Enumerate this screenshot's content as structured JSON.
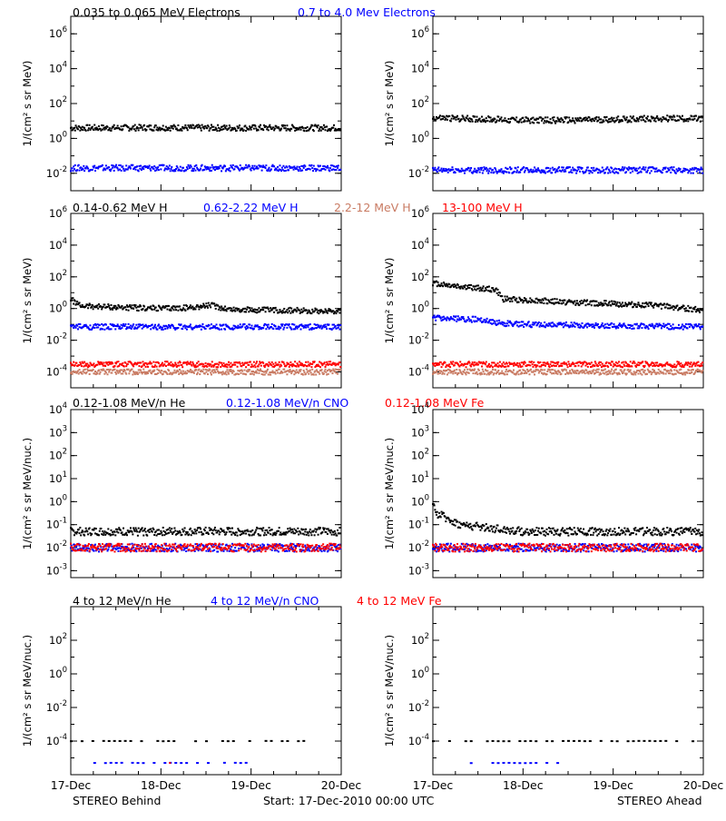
{
  "legends": [
    [
      {
        "text": "0.035 to 0.065 MeV Electrons",
        "color": "#000000"
      },
      {
        "text": "0.7 to 4.0 Mev Electrons",
        "color": "#0000ff"
      }
    ],
    [
      {
        "text": "0.14-0.62 MeV H",
        "color": "#000000"
      },
      {
        "text": "0.62-2.22 MeV H",
        "color": "#0000ff"
      },
      {
        "text": "2.2-12 MeV H",
        "color": "#c97b63"
      },
      {
        "text": "13-100 MeV H",
        "color": "#ff0000"
      }
    ],
    [
      {
        "text": "0.12-1.08 MeV/n He",
        "color": "#000000"
      },
      {
        "text": "0.12-1.08 MeV/n CNO",
        "color": "#0000ff"
      },
      {
        "text": "0.12-1.08 MeV Fe",
        "color": "#ff0000"
      }
    ],
    [
      {
        "text": "4 to 12 MeV/n He",
        "color": "#000000"
      },
      {
        "text": "4 to 12 MeV/n CNO",
        "color": "#0000ff"
      },
      {
        "text": "4 to 12 MeV Fe",
        "color": "#ff0000"
      }
    ]
  ],
  "footer": {
    "left": "STEREO Behind",
    "center": "Start: 17-Dec-2010 00:00 UTC",
    "right": "STEREO Ahead"
  },
  "chart_data": [
    {
      "type": "scatter",
      "name": "electrons-behind",
      "ylabel": "1/(cm² s sr MeV)",
      "yscale": "log",
      "ylim": [
        0.001,
        10000000
      ],
      "yticks": [
        "10^6",
        "10^4",
        "10^2",
        "10^0",
        "10^-2"
      ],
      "xlim": [
        "17-Dec",
        "20-Dec"
      ],
      "xticks": [],
      "series": [
        {
          "name": "0.035 to 0.065 MeV Electrons",
          "color": "#000000",
          "points": [
            [
              0,
              4
            ],
            [
              0.5,
              4
            ],
            [
              1,
              4.2
            ],
            [
              1.5,
              4
            ],
            [
              2,
              4
            ],
            [
              2.5,
              4
            ],
            [
              3,
              4
            ]
          ]
        },
        {
          "name": "0.7 to 4.0 Mev Electrons",
          "color": "#0000ff",
          "points": [
            [
              0,
              0.02
            ],
            [
              1,
              0.02
            ],
            [
              2,
              0.02
            ],
            [
              3,
              0.02
            ]
          ]
        }
      ]
    },
    {
      "type": "scatter",
      "name": "electrons-ahead",
      "ylabel": "1/(cm² s sr MeV)",
      "yscale": "log",
      "ylim": [
        0.001,
        10000000
      ],
      "yticks": [
        "10^6",
        "10^4",
        "10^2",
        "10^0",
        "10^-2"
      ],
      "xlim": [
        "17-Dec",
        "20-Dec"
      ],
      "xticks": [],
      "series": [
        {
          "name": "0.035 to 0.065 MeV Electrons",
          "color": "#000000",
          "points": [
            [
              0,
              15
            ],
            [
              0.5,
              13
            ],
            [
              1,
              11
            ],
            [
              1.5,
              11
            ],
            [
              2,
              12
            ],
            [
              2.5,
              14
            ],
            [
              3,
              13
            ]
          ]
        },
        {
          "name": "0.7 to 4.0 Mev Electrons",
          "color": "#0000ff",
          "points": [
            [
              0,
              0.015
            ],
            [
              1,
              0.015
            ],
            [
              2,
              0.015
            ],
            [
              3,
              0.015
            ]
          ]
        }
      ]
    },
    {
      "type": "scatter",
      "name": "protons-behind",
      "ylabel": "1/(cm² s sr MeV)",
      "yscale": "log",
      "ylim": [
        1e-05,
        1000000
      ],
      "yticks": [
        "10^6",
        "10^4",
        "10^2",
        "10^0",
        "10^-2",
        "10^-4"
      ],
      "xlim": [
        "17-Dec",
        "20-Dec"
      ],
      "xticks": [],
      "series": [
        {
          "name": "0.14-0.62 MeV H",
          "color": "#000000",
          "points": [
            [
              0,
              4
            ],
            [
              0.1,
              1.5
            ],
            [
              0.5,
              1.2
            ],
            [
              1,
              1
            ],
            [
              1.3,
              1.1
            ],
            [
              1.55,
              1.6
            ],
            [
              1.75,
              0.9
            ],
            [
              2,
              0.8
            ],
            [
              2.5,
              0.75
            ],
            [
              3,
              0.7
            ]
          ]
        },
        {
          "name": "0.62-2.22 MeV H",
          "color": "#0000ff",
          "points": [
            [
              0,
              0.07
            ],
            [
              1,
              0.07
            ],
            [
              2,
              0.07
            ],
            [
              3,
              0.07
            ]
          ]
        },
        {
          "name": "2.2-12 MeV H",
          "color": "#c97b63",
          "points": [
            [
              0,
              0.0001
            ],
            [
              1,
              0.0001
            ],
            [
              2,
              0.0001
            ],
            [
              3,
              0.0001
            ]
          ]
        },
        {
          "name": "13-100 MeV H",
          "color": "#ff0000",
          "points": [
            [
              0,
              0.0003
            ],
            [
              1,
              0.0003
            ],
            [
              2,
              0.0003
            ],
            [
              3,
              0.0003
            ]
          ]
        }
      ]
    },
    {
      "type": "scatter",
      "name": "protons-ahead",
      "ylabel": "1/(cm² s sr MeV)",
      "yscale": "log",
      "ylim": [
        1e-05,
        1000000
      ],
      "yticks": [
        "10^6",
        "10^4",
        "10^2",
        "10^0",
        "10^-2",
        "10^-4"
      ],
      "xlim": [
        "17-Dec",
        "20-Dec"
      ],
      "xticks": [],
      "series": [
        {
          "name": "0.14-0.62 MeV H",
          "color": "#000000",
          "points": [
            [
              0,
              40
            ],
            [
              0.3,
              25
            ],
            [
              0.7,
              15
            ],
            [
              0.78,
              4
            ],
            [
              1,
              3.5
            ],
            [
              1.5,
              2.5
            ],
            [
              2,
              2
            ],
            [
              2.5,
              1.5
            ],
            [
              3,
              0.8
            ]
          ]
        },
        {
          "name": "0.62-2.22 MeV H",
          "color": "#0000ff",
          "points": [
            [
              0,
              0.25
            ],
            [
              0.5,
              0.2
            ],
            [
              0.75,
              0.12
            ],
            [
              1,
              0.1
            ],
            [
              2,
              0.08
            ],
            [
              3,
              0.07
            ]
          ]
        },
        {
          "name": "2.2-12 MeV H",
          "color": "#c97b63",
          "points": [
            [
              0,
              0.0001
            ],
            [
              1,
              0.0001
            ],
            [
              2,
              0.0001
            ],
            [
              3,
              0.0001
            ]
          ]
        },
        {
          "name": "13-100 MeV H",
          "color": "#ff0000",
          "points": [
            [
              0,
              0.0003
            ],
            [
              1,
              0.0003
            ],
            [
              2,
              0.0003
            ],
            [
              3,
              0.0003
            ]
          ]
        }
      ]
    },
    {
      "type": "scatter",
      "name": "heavy-low-behind",
      "ylabel": "1/(cm² s sr MeV/nuc.)",
      "yscale": "log",
      "ylim": [
        0.0005,
        10000
      ],
      "yticks": [
        "10^4",
        "10^3",
        "10^2",
        "10^1",
        "10^0",
        "10^-1",
        "10^-2",
        "10^-3"
      ],
      "xlim": [
        "17-Dec",
        "20-Dec"
      ],
      "xticks": [],
      "series": [
        {
          "name": "0.12-1.08 MeV/n He",
          "color": "#000000",
          "points": [
            [
              0,
              0.05
            ],
            [
              1,
              0.05
            ],
            [
              2,
              0.05
            ],
            [
              3,
              0.05
            ]
          ]
        },
        {
          "name": "0.12-1.08 MeV/n CNO",
          "color": "#0000ff",
          "points": [
            [
              0,
              0.01
            ],
            [
              1,
              0.01
            ],
            [
              2,
              0.01
            ],
            [
              3,
              0.01
            ]
          ]
        },
        {
          "name": "0.12-1.08 MeV Fe",
          "color": "#ff0000",
          "points": [
            [
              0,
              0.01
            ],
            [
              1,
              0.01
            ],
            [
              2,
              0.01
            ],
            [
              3,
              0.01
            ]
          ]
        }
      ]
    },
    {
      "type": "scatter",
      "name": "heavy-low-ahead",
      "ylabel": "1/(cm² s sr MeV/nuc.)",
      "yscale": "log",
      "ylim": [
        0.0005,
        10000
      ],
      "yticks": [
        "10^4",
        "10^3",
        "10^2",
        "10^1",
        "10^0",
        "10^-1",
        "10^-2",
        "10^-3"
      ],
      "xlim": [
        "17-Dec",
        "20-Dec"
      ],
      "xticks": [],
      "series": [
        {
          "name": "0.12-1.08 MeV/n He",
          "color": "#000000",
          "points": [
            [
              0,
              0.6
            ],
            [
              0.05,
              0.3
            ],
            [
              0.15,
              0.2
            ],
            [
              0.3,
              0.1
            ],
            [
              1,
              0.05
            ],
            [
              2,
              0.05
            ],
            [
              3,
              0.05
            ]
          ]
        },
        {
          "name": "0.12-1.08 MeV/n CNO",
          "color": "#0000ff",
          "points": [
            [
              0,
              0.01
            ],
            [
              1,
              0.01
            ],
            [
              2,
              0.01
            ],
            [
              3,
              0.01
            ]
          ]
        },
        {
          "name": "0.12-1.08 MeV Fe",
          "color": "#ff0000",
          "points": [
            [
              0,
              0.01
            ],
            [
              1,
              0.01
            ],
            [
              2,
              0.01
            ],
            [
              3,
              0.01
            ]
          ]
        }
      ]
    },
    {
      "type": "scatter",
      "name": "heavy-high-behind",
      "ylabel": "1/(cm² s sr MeV/nuc.)",
      "yscale": "log",
      "ylim": [
        1e-06,
        10000
      ],
      "yticks": [
        "10^2",
        "10^0",
        "10^-2",
        "10^-4"
      ],
      "xlim": [
        "17-Dec",
        "20-Dec"
      ],
      "xticks": [
        "17-Dec",
        "18-Dec",
        "19-Dec",
        "20-Dec"
      ],
      "series": [
        {
          "name": "4 to 12 MeV/n He",
          "color": "#000000",
          "points": [
            [
              0,
              0.0001
            ],
            [
              1,
              0.0001
            ],
            [
              2,
              0.0001
            ],
            [
              2.8,
              0.0001
            ]
          ]
        },
        {
          "name": "4 to 12 MeV/n CNO",
          "color": "#0000ff",
          "points": [
            [
              0.2,
              5e-06
            ],
            [
              1,
              5e-06
            ],
            [
              2,
              5e-06
            ]
          ]
        },
        {
          "name": "4 to 12 MeV Fe",
          "color": "#ff0000",
          "points": [
            [
              1.1,
              5e-06
            ]
          ]
        }
      ]
    },
    {
      "type": "scatter",
      "name": "heavy-high-ahead",
      "ylabel": "1/(cm² s sr MeV/nuc.)",
      "yscale": "log",
      "ylim": [
        1e-06,
        10000
      ],
      "yticks": [
        "10^2",
        "10^0",
        "10^-2",
        "10^-4"
      ],
      "xlim": [
        "17-Dec",
        "20-Dec"
      ],
      "xticks": [
        "17-Dec",
        "18-Dec",
        "19-Dec",
        "20-Dec"
      ],
      "series": [
        {
          "name": "4 to 12 MeV/n He",
          "color": "#000000",
          "points": [
            [
              0,
              0.0001
            ],
            [
              1,
              0.0001
            ],
            [
              2,
              0.0001
            ],
            [
              2.9,
              0.0001
            ]
          ]
        },
        {
          "name": "4 to 12 MeV/n CNO",
          "color": "#0000ff",
          "points": [
            [
              0.3,
              5e-06
            ],
            [
              1.5,
              5e-06
            ]
          ]
        },
        {
          "name": "4 to 12 MeV Fe",
          "color": "#ff0000",
          "points": []
        }
      ]
    }
  ]
}
